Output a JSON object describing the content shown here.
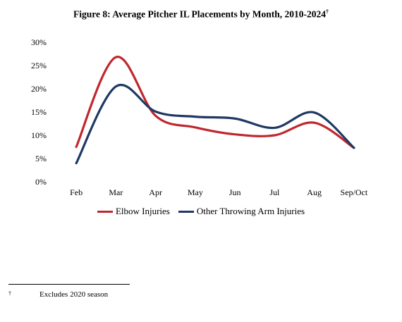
{
  "title": "Figure 8: Average Pitcher IL Placements by Month, 2010-2024",
  "title_mark": "†",
  "footnote": {
    "mark": "†",
    "text": "Excludes 2020 season"
  },
  "chart_data": {
    "type": "line",
    "title": "Figure 8: Average Pitcher IL Placements by Month, 2010-2024",
    "categories": [
      "Feb",
      "Mar",
      "Apr",
      "May",
      "Jun",
      "Jul",
      "Aug",
      "Sep/Oct"
    ],
    "ylim": [
      0,
      30
    ],
    "yticks": [
      "0%",
      "5%",
      "10%",
      "15%",
      "20%",
      "25%",
      "30%"
    ],
    "grid": false,
    "legend_position": "bottom",
    "series": [
      {
        "name": "Elbow Injuries",
        "color": "#c0272d",
        "values": [
          7.5,
          26.8,
          14.2,
          11.7,
          10.2,
          10.0,
          12.7,
          7.3
        ]
      },
      {
        "name": "Other Throwing Arm Injuries",
        "color": "#1f3864",
        "values": [
          4.0,
          20.5,
          15.1,
          14.0,
          13.6,
          11.6,
          14.9,
          7.3
        ]
      }
    ]
  }
}
